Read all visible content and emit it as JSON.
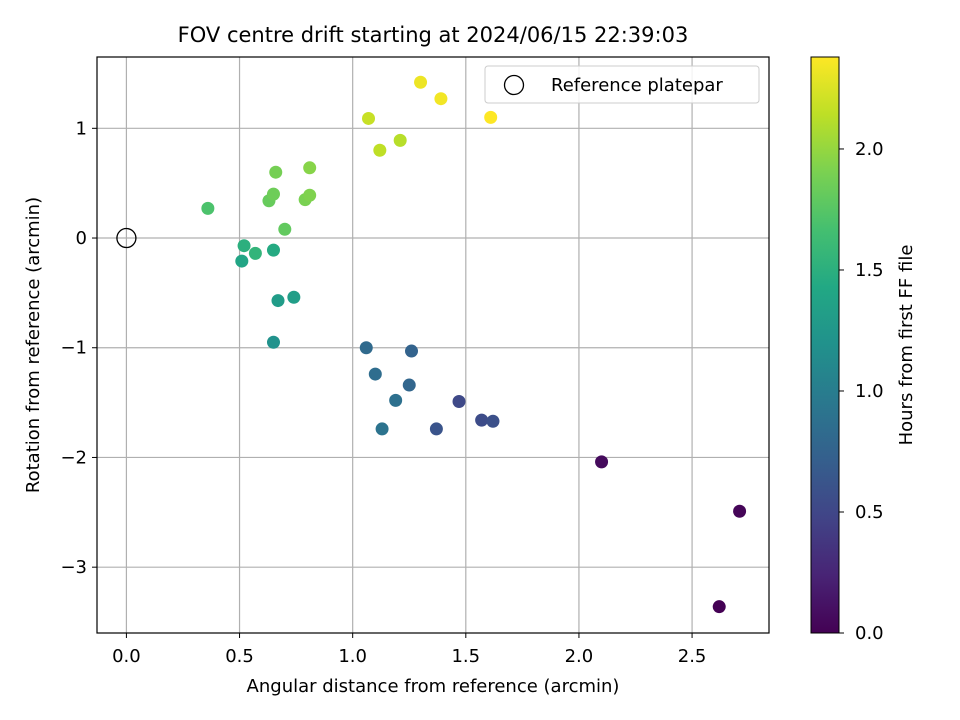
{
  "chart_data": {
    "type": "scatter",
    "title": "FOV centre drift starting at 2024/06/15 22:39:03",
    "xlabel": "Angular distance from reference (arcmin)",
    "ylabel": "Rotation from reference (arcmin)",
    "xlim": [
      -0.13,
      2.84
    ],
    "ylim": [
      -3.6,
      1.65
    ],
    "xticks": [
      0.0,
      0.5,
      1.0,
      1.5,
      2.0,
      2.5
    ],
    "xtick_labels": [
      "0.0",
      "0.5",
      "1.0",
      "1.5",
      "2.0",
      "2.5"
    ],
    "yticks": [
      -3,
      -2,
      -1,
      0,
      1
    ],
    "ytick_labels": [
      "−3",
      "−2",
      "−1",
      "0",
      "1"
    ],
    "grid": true,
    "legend": {
      "placement": "top-right",
      "entries": [
        "Reference platepar"
      ]
    },
    "reference_point": {
      "x": 0.0,
      "y": 0.0
    },
    "colorbar": {
      "label": "Hours from first FF file",
      "range": [
        0.0,
        2.38
      ],
      "ticks": [
        0.0,
        0.5,
        1.0,
        1.5,
        2.0
      ],
      "tick_labels": [
        "0.0",
        "0.5",
        "1.0",
        "1.5",
        "2.0"
      ],
      "colormap": "viridis"
    },
    "points": [
      {
        "x": 2.62,
        "y": -3.36,
        "hours": 0.0
      },
      {
        "x": 2.71,
        "y": -2.49,
        "hours": 0.03
      },
      {
        "x": 2.1,
        "y": -2.04,
        "hours": 0.06
      },
      {
        "x": 1.47,
        "y": -1.49,
        "hours": 0.52
      },
      {
        "x": 1.57,
        "y": -1.66,
        "hours": 0.55
      },
      {
        "x": 1.62,
        "y": -1.67,
        "hours": 0.58
      },
      {
        "x": 1.37,
        "y": -1.74,
        "hours": 0.62
      },
      {
        "x": 1.26,
        "y": -1.03,
        "hours": 0.75
      },
      {
        "x": 1.25,
        "y": -1.34,
        "hours": 0.78
      },
      {
        "x": 1.06,
        "y": -1.0,
        "hours": 0.82
      },
      {
        "x": 1.1,
        "y": -1.24,
        "hours": 0.85
      },
      {
        "x": 1.19,
        "y": -1.48,
        "hours": 0.88
      },
      {
        "x": 1.13,
        "y": -1.74,
        "hours": 0.9
      },
      {
        "x": 0.65,
        "y": -0.95,
        "hours": 1.2
      },
      {
        "x": 0.67,
        "y": -0.57,
        "hours": 1.3
      },
      {
        "x": 0.74,
        "y": -0.54,
        "hours": 1.32
      },
      {
        "x": 0.51,
        "y": -0.21,
        "hours": 1.4
      },
      {
        "x": 0.65,
        "y": -0.11,
        "hours": 1.45
      },
      {
        "x": 0.52,
        "y": -0.07,
        "hours": 1.5
      },
      {
        "x": 0.57,
        "y": -0.14,
        "hours": 1.55
      },
      {
        "x": 0.36,
        "y": 0.27,
        "hours": 1.7
      },
      {
        "x": 0.7,
        "y": 0.08,
        "hours": 1.8
      },
      {
        "x": 0.63,
        "y": 0.34,
        "hours": 1.82
      },
      {
        "x": 0.65,
        "y": 0.4,
        "hours": 1.85
      },
      {
        "x": 0.66,
        "y": 0.6,
        "hours": 1.88
      },
      {
        "x": 0.79,
        "y": 0.35,
        "hours": 1.9
      },
      {
        "x": 0.81,
        "y": 0.39,
        "hours": 1.92
      },
      {
        "x": 0.81,
        "y": 0.64,
        "hours": 1.95
      },
      {
        "x": 1.21,
        "y": 0.89,
        "hours": 2.12
      },
      {
        "x": 1.12,
        "y": 0.8,
        "hours": 2.15
      },
      {
        "x": 1.07,
        "y": 1.09,
        "hours": 2.18
      },
      {
        "x": 1.3,
        "y": 1.42,
        "hours": 2.32
      },
      {
        "x": 1.39,
        "y": 1.27,
        "hours": 2.34
      },
      {
        "x": 1.61,
        "y": 1.1,
        "hours": 2.38
      }
    ]
  }
}
